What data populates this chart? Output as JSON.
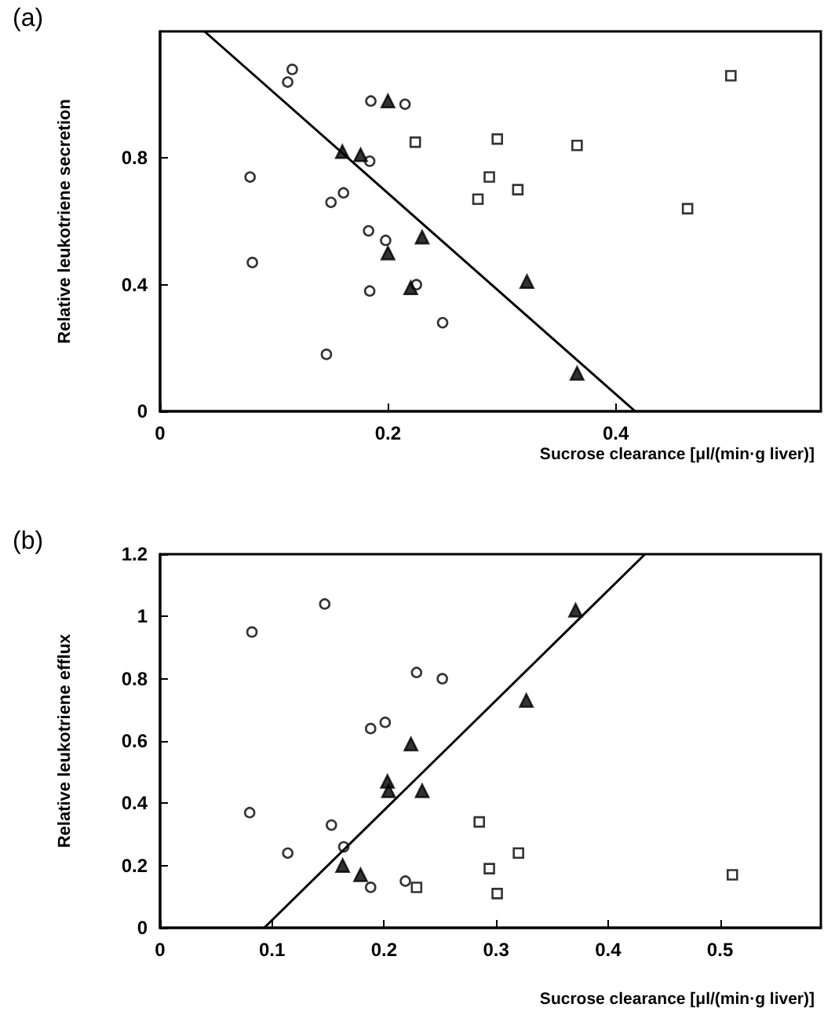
{
  "chart_data": [
    {
      "type": "scatter",
      "xlabel": "Sucrose clearance [μl/(min·g liver)]",
      "ylabel": "Relative leukotriene secretion",
      "annotations": [
        "(a)"
      ],
      "xlim": [
        0,
        0.58
      ],
      "xticks": [
        0,
        0.2,
        0.4
      ],
      "ylim": [
        0,
        1.2
      ],
      "yticks": [
        0,
        0.4,
        0.8
      ],
      "grid": false,
      "series": [
        {
          "type": "scatter",
          "marker": "circle",
          "color": "#000000",
          "x": [
            0.116,
            0.112,
            0.185,
            0.215,
            0.184,
            0.079,
            0.161,
            0.15,
            0.183,
            0.198,
            0.081,
            0.184,
            0.225,
            0.248,
            0.146
          ],
          "values": [
            1.08,
            1.04,
            0.98,
            0.97,
            0.79,
            0.74,
            0.69,
            0.66,
            0.57,
            0.54,
            0.47,
            0.38,
            0.4,
            0.28,
            0.18
          ]
        },
        {
          "type": "scatter",
          "marker": "triangle",
          "color": "#000000",
          "x": [
            0.2,
            0.16,
            0.176,
            0.23,
            0.2,
            0.22,
            0.322,
            0.366
          ],
          "values": [
            0.98,
            0.82,
            0.81,
            0.55,
            0.5,
            0.39,
            0.41,
            0.12
          ]
        },
        {
          "type": "scatter",
          "marker": "square",
          "color": "#000000",
          "x": [
            0.501,
            0.224,
            0.296,
            0.366,
            0.289,
            0.314,
            0.279,
            0.463
          ],
          "values": [
            1.06,
            0.85,
            0.86,
            0.84,
            0.74,
            0.7,
            0.67,
            0.64
          ]
        },
        {
          "type": "line",
          "marker": "none",
          "color": "#000000",
          "x": [
            0.039,
            0.417
          ],
          "values": [
            1.2,
            0
          ]
        }
      ]
    },
    {
      "type": "scatter",
      "xlabel": "Sucrose clearance [μl/(min·g liver)]",
      "ylabel": "Relative leukotriene efflux",
      "annotations": [
        "(b)"
      ],
      "xlim": [
        0,
        0.59
      ],
      "xticks": [
        0,
        0.1,
        0.2,
        0.3,
        0.4,
        0.5
      ],
      "ylim": [
        0,
        1.2
      ],
      "yticks": [
        0,
        0.2,
        0.4,
        0.6,
        0.8,
        1,
        1.2
      ],
      "grid": false,
      "series": [
        {
          "type": "scatter",
          "marker": "circle",
          "color": "#000000",
          "x": [
            0.147,
            0.082,
            0.229,
            0.252,
            0.188,
            0.201,
            0.08,
            0.153,
            0.114,
            0.164,
            0.188,
            0.219
          ],
          "values": [
            1.04,
            0.95,
            0.82,
            0.8,
            0.64,
            0.66,
            0.37,
            0.33,
            0.24,
            0.26,
            0.13,
            0.15
          ]
        },
        {
          "type": "scatter",
          "marker": "triangle",
          "color": "#000000",
          "x": [
            0.371,
            0.327,
            0.224,
            0.203,
            0.204,
            0.234,
            0.163,
            0.179
          ],
          "values": [
            1.02,
            0.73,
            0.59,
            0.47,
            0.44,
            0.44,
            0.2,
            0.17
          ]
        },
        {
          "type": "scatter",
          "marker": "square",
          "color": "#000000",
          "x": [
            0.285,
            0.32,
            0.294,
            0.301,
            0.229,
            0.511
          ],
          "values": [
            0.34,
            0.24,
            0.19,
            0.11,
            0.13,
            0.17
          ]
        },
        {
          "type": "line",
          "marker": "none",
          "color": "#000000",
          "x": [
            0.093,
            0.433
          ],
          "values": [
            0,
            1.2
          ]
        }
      ]
    }
  ]
}
